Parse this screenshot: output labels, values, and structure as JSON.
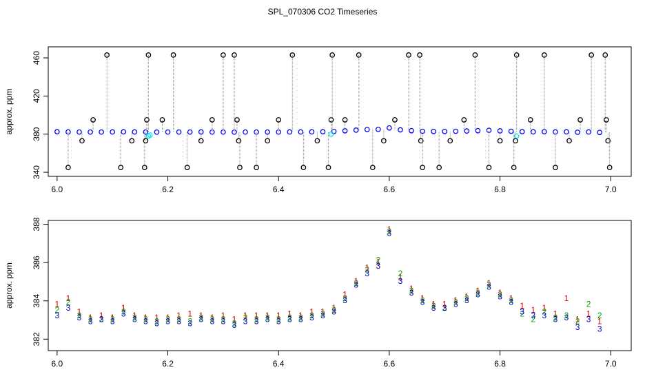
{
  "title": "SPL_070306  CO2 Timeseries",
  "chart_data": [
    {
      "type": "scatter",
      "ylabel": "approx. ppm",
      "xlim": [
        5.984,
        7.037
      ],
      "ylim": [
        335.7,
        471.6
      ],
      "xticks": [
        {
          "value": 6,
          "label": "6.0"
        },
        {
          "value": 6.2,
          "label": "6.2"
        },
        {
          "value": 6.4,
          "label": "6.4"
        },
        {
          "value": 6.6,
          "label": "6.6"
        },
        {
          "value": 6.8,
          "label": "6.8"
        },
        {
          "value": 7,
          "label": "7.0"
        }
      ],
      "yticks": [
        340,
        380,
        420,
        460
      ],
      "series": [
        {
          "color": "#0000ff",
          "marker": "circle",
          "x": [
            6.0,
            6.02,
            6.04,
            6.06,
            6.08,
            6.1,
            6.12,
            6.14,
            6.16,
            6.18,
            6.2,
            6.22,
            6.24,
            6.26,
            6.28,
            6.3,
            6.32,
            6.34,
            6.36,
            6.38,
            6.4,
            6.42,
            6.44,
            6.46,
            6.48,
            6.5,
            6.52,
            6.54,
            6.56,
            6.58,
            6.6,
            6.62,
            6.64,
            6.66,
            6.68,
            6.7,
            6.72,
            6.74,
            6.76,
            6.78,
            6.8,
            6.82,
            6.84,
            6.86,
            6.88,
            6.9,
            6.92,
            6.94,
            6.96,
            6.98
          ],
          "values": [
            382.5,
            382.3,
            382.2,
            382.2,
            382.2,
            382.3,
            382.4,
            382.3,
            382.2,
            382.1,
            382.2,
            382.2,
            382.2,
            382.3,
            382.2,
            382.2,
            382.1,
            382.2,
            382.2,
            382.2,
            382.2,
            382.3,
            382.3,
            382.4,
            382.5,
            382.8,
            383.5,
            384.2,
            384.8,
            385.0,
            386.5,
            384.5,
            383.6,
            383.0,
            382.8,
            382.8,
            383.0,
            383.3,
            383.6,
            384.0,
            383.4,
            383.0,
            382.6,
            382.4,
            382.5,
            382.3,
            382.4,
            382.0,
            382.3,
            381.8
          ]
        },
        {
          "color": "#000000",
          "marker": "circle",
          "drop": true,
          "x": [
            6.02,
            6.045,
            6.065,
            6.09,
            6.115,
            6.135,
            6.158,
            6.16,
            6.162,
            6.165,
            6.19,
            6.21,
            6.235,
            6.26,
            6.28,
            6.3,
            6.32,
            6.325,
            6.328,
            6.33,
            6.36,
            6.38,
            6.4,
            6.425,
            6.445,
            6.47,
            6.49,
            6.495,
            6.497,
            6.52,
            6.545,
            6.57,
            6.59,
            6.61,
            6.635,
            6.655,
            6.657,
            6.66,
            6.69,
            6.71,
            6.735,
            6.755,
            6.78,
            6.8,
            6.825,
            6.828,
            6.83,
            6.855,
            6.88,
            6.9,
            6.925,
            6.945,
            6.965,
            6.99,
            6.992,
            6.995,
            6.998
          ],
          "values": [
            345,
            373,
            395,
            463,
            345,
            373,
            345,
            373,
            395,
            463,
            395,
            463,
            345,
            373,
            395,
            463,
            463,
            395,
            373,
            345,
            345,
            373,
            395,
            463,
            345,
            373,
            345,
            395,
            463,
            395,
            463,
            345,
            373,
            395,
            463,
            463,
            373,
            345,
            345,
            373,
            395,
            463,
            345,
            373,
            345,
            373,
            463,
            395,
            463,
            345,
            373,
            395,
            463,
            463,
            395,
            373,
            345
          ]
        },
        {
          "color": "#00e5ee",
          "marker": "circle",
          "x": [
            6.165,
            6.168,
            6.495,
            6.83
          ],
          "values": [
            378,
            379,
            380,
            378
          ]
        }
      ]
    },
    {
      "type": "scatter",
      "ylabel": "approx. ppm",
      "xlim": [
        5.984,
        7.037
      ],
      "ylim": [
        381.4,
        388.2
      ],
      "xticks": [
        {
          "value": 6,
          "label": "6.0"
        },
        {
          "value": 6.2,
          "label": "6.2"
        },
        {
          "value": 6.4,
          "label": "6.4"
        },
        {
          "value": 6.6,
          "label": "6.6"
        },
        {
          "value": 6.8,
          "label": "6.8"
        },
        {
          "value": 7,
          "label": "7.0"
        }
      ],
      "yticks": [
        382,
        384,
        386,
        388
      ],
      "series": [
        {
          "color": "#dd0000",
          "marker": "text",
          "symbol": "1",
          "x": [
            6.0,
            6.02,
            6.04,
            6.06,
            6.08,
            6.1,
            6.12,
            6.14,
            6.16,
            6.18,
            6.2,
            6.22,
            6.24,
            6.26,
            6.28,
            6.3,
            6.32,
            6.34,
            6.36,
            6.38,
            6.4,
            6.42,
            6.44,
            6.46,
            6.48,
            6.5,
            6.52,
            6.54,
            6.56,
            6.58,
            6.6,
            6.62,
            6.64,
            6.66,
            6.68,
            6.7,
            6.72,
            6.74,
            6.76,
            6.78,
            6.8,
            6.82,
            6.84,
            6.86,
            6.88,
            6.9,
            6.92,
            6.94,
            6.96,
            6.98
          ],
          "values": [
            383.8,
            384.1,
            383.4,
            383.1,
            383.2,
            383.1,
            383.6,
            383.2,
            383.1,
            383.1,
            383.1,
            383.2,
            383.3,
            383.2,
            383.1,
            383.2,
            383.0,
            383.2,
            383.2,
            383.2,
            383.2,
            383.3,
            383.2,
            383.4,
            383.4,
            383.6,
            384.3,
            385.0,
            385.7,
            386.0,
            387.7,
            385.2,
            384.6,
            384.1,
            383.8,
            383.8,
            384.0,
            384.2,
            384.5,
            384.9,
            384.4,
            384.1,
            383.7,
            383.5,
            383.6,
            383.3,
            384.1,
            383.0,
            383.3,
            382.9
          ]
        },
        {
          "color": "#00aa00",
          "marker": "text",
          "symbol": "2",
          "x": [
            6.0,
            6.02,
            6.04,
            6.06,
            6.08,
            6.1,
            6.12,
            6.14,
            6.16,
            6.18,
            6.2,
            6.22,
            6.24,
            6.26,
            6.28,
            6.3,
            6.32,
            6.34,
            6.36,
            6.38,
            6.4,
            6.42,
            6.44,
            6.46,
            6.48,
            6.5,
            6.52,
            6.54,
            6.56,
            6.58,
            6.6,
            6.62,
            6.64,
            6.66,
            6.68,
            6.7,
            6.72,
            6.74,
            6.76,
            6.78,
            6.8,
            6.82,
            6.84,
            6.86,
            6.88,
            6.9,
            6.92,
            6.94,
            6.96,
            6.98
          ],
          "values": [
            383.5,
            383.9,
            383.2,
            383.0,
            383.0,
            383.0,
            383.4,
            383.1,
            383.0,
            382.9,
            383.0,
            383.0,
            382.9,
            383.1,
            383.0,
            383.0,
            382.8,
            383.1,
            383.0,
            383.1,
            383.0,
            383.1,
            383.1,
            383.2,
            383.3,
            383.5,
            384.1,
            384.9,
            385.6,
            386.1,
            387.6,
            385.4,
            384.5,
            384.0,
            383.7,
            383.6,
            383.9,
            384.1,
            384.4,
            384.8,
            384.3,
            384.0,
            383.3,
            383.0,
            383.4,
            383.1,
            383.2,
            382.9,
            383.8,
            383.2
          ]
        },
        {
          "color": "#0000cc",
          "marker": "text",
          "symbol": "3",
          "x": [
            6.0,
            6.02,
            6.04,
            6.06,
            6.08,
            6.1,
            6.12,
            6.14,
            6.16,
            6.18,
            6.2,
            6.22,
            6.24,
            6.26,
            6.28,
            6.3,
            6.32,
            6.34,
            6.36,
            6.38,
            6.4,
            6.42,
            6.44,
            6.46,
            6.48,
            6.5,
            6.52,
            6.54,
            6.56,
            6.58,
            6.6,
            6.62,
            6.64,
            6.66,
            6.68,
            6.7,
            6.72,
            6.74,
            6.76,
            6.78,
            6.8,
            6.82,
            6.84,
            6.86,
            6.88,
            6.9,
            6.92,
            6.94,
            6.96,
            6.98
          ],
          "values": [
            383.2,
            383.6,
            383.1,
            382.9,
            383.0,
            382.9,
            383.3,
            383.0,
            382.9,
            382.8,
            382.9,
            382.9,
            382.8,
            383.0,
            382.9,
            382.9,
            382.7,
            382.9,
            382.9,
            383.0,
            382.9,
            383.0,
            383.0,
            383.1,
            383.2,
            383.4,
            384.0,
            384.8,
            385.4,
            385.8,
            387.5,
            385.0,
            384.4,
            383.9,
            383.6,
            383.6,
            383.8,
            384.0,
            384.3,
            384.7,
            384.2,
            383.9,
            383.4,
            383.2,
            383.2,
            383.0,
            383.1,
            382.6,
            383.0,
            382.5
          ]
        }
      ]
    }
  ]
}
